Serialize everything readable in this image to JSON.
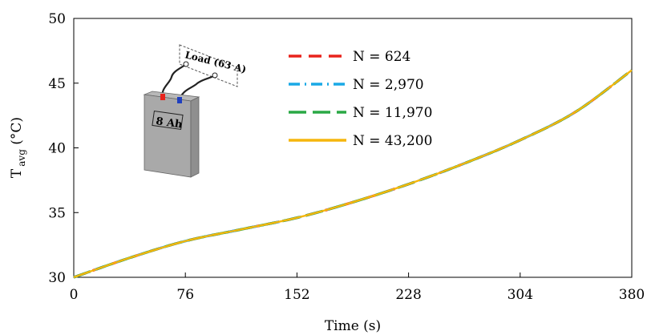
{
  "chart_data": {
    "type": "line",
    "xlabel": "Time (s)",
    "ylabel_main": "T",
    "ylabel_sub": "avg",
    "ylabel_unit": " (°C)",
    "xlim": [
      0,
      380
    ],
    "ylim": [
      30,
      50
    ],
    "xticks": [
      0,
      76,
      152,
      228,
      304,
      380
    ],
    "yticks": [
      30,
      35,
      40,
      45,
      50
    ],
    "grid": false,
    "legend_position": "upper-center",
    "x": [
      0,
      38,
      76,
      114,
      152,
      190,
      228,
      266,
      304,
      342,
      380
    ],
    "series": [
      {
        "name": "N = 624",
        "color": "#e8231c",
        "style": "dash",
        "values": [
          30.0,
          31.5,
          32.8,
          33.7,
          34.6,
          35.8,
          37.2,
          38.8,
          40.6,
          42.8,
          46.0
        ]
      },
      {
        "name": "N = 2,970",
        "color": "#1aa9e6",
        "style": "dashdot",
        "values": [
          30.0,
          31.5,
          32.8,
          33.7,
          34.6,
          35.8,
          37.2,
          38.8,
          40.6,
          42.8,
          46.0
        ]
      },
      {
        "name": "N = 11,970",
        "color": "#2aa845",
        "style": "longdash",
        "values": [
          30.0,
          31.5,
          32.8,
          33.7,
          34.6,
          35.8,
          37.2,
          38.8,
          40.6,
          42.8,
          46.0
        ]
      },
      {
        "name": "N = 43,200",
        "color": "#f5b60d",
        "style": "solid",
        "values": [
          30.0,
          31.5,
          32.8,
          33.7,
          34.6,
          35.8,
          37.2,
          38.8,
          40.6,
          42.8,
          46.0
        ]
      }
    ],
    "inset": {
      "load_label": "Load (63 A)",
      "battery_label": "8 Ah"
    }
  }
}
